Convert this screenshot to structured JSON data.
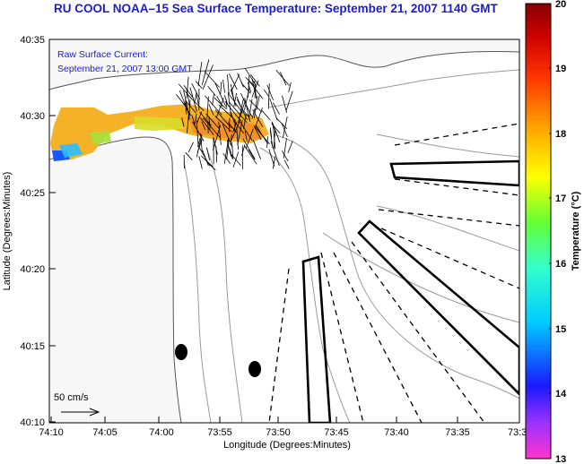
{
  "title": "RU COOL  NOAA–15  Sea Surface Temperature:  September 21, 2007 1140 GMT",
  "current_label": {
    "line1": "Raw Surface Current:",
    "line2": "September 21, 2007 13:00 GMT"
  },
  "scale_label": "50 cm/s",
  "axes": {
    "xlabel": "Longitude (Degrees:Minutes)",
    "ylabel": "Latitude (Degrees:Minutes)",
    "x_ticks": [
      "74:10",
      "74:05",
      "74:00",
      "73:55",
      "73:50",
      "73:45",
      "73:40",
      "73:35",
      "73:3"
    ],
    "y_ticks": [
      "40:35",
      "40:30",
      "40:25",
      "40:20",
      "40:15",
      "40:10"
    ]
  },
  "colorbar": {
    "label": "Temperature (°C)",
    "ticks": [
      "20",
      "19",
      "18",
      "17",
      "16",
      "15",
      "14",
      "13"
    ],
    "range": [
      13,
      20
    ],
    "stops": [
      "#ff33cc",
      "#9933ff",
      "#1a1aff",
      "#00ccff",
      "#33ffcc",
      "#66ff33",
      "#ffff00",
      "#ffaa00",
      "#ff3300",
      "#cc0000",
      "#880000"
    ]
  }
}
